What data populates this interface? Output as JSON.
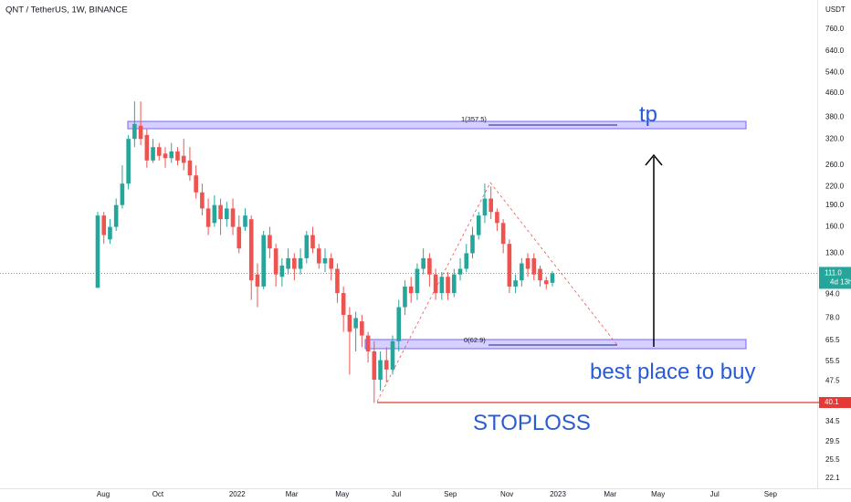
{
  "chart_data": {
    "type": "candlestick",
    "title": "QNT / TetherUS, 1W, BINANCE",
    "y_unit": "USDT",
    "log_scale": true,
    "grid": false,
    "up_color": "#26a69a",
    "down_color": "#ef5350",
    "series": {
      "open": [
        99,
        175,
        145,
        160,
        190,
        225,
        320,
        355,
        330,
        270,
        300,
        285,
        275,
        290,
        280,
        270,
        240,
        210,
        185,
        165,
        190,
        170,
        185,
        160,
        160,
        170,
        110,
        100,
        150,
        135,
        108,
        115,
        125,
        115,
        125,
        150,
        135,
        120,
        125,
        115,
        95,
        80,
        72,
        76,
        68,
        60,
        48,
        56,
        52,
        65,
        85,
        100,
        95,
        115,
        125,
        110,
        95,
        108,
        95,
        110,
        115,
        130,
        150,
        175,
        200,
        180,
        165,
        140,
        100,
        105,
        125,
        125,
        115,
        105,
        103
      ],
      "high": [
        180,
        180,
        170,
        200,
        260,
        330,
        430,
        430,
        345,
        320,
        310,
        300,
        310,
        300,
        320,
        300,
        260,
        225,
        200,
        205,
        200,
        195,
        200,
        175,
        185,
        175,
        120,
        155,
        160,
        140,
        125,
        135,
        130,
        135,
        155,
        160,
        140,
        135,
        130,
        120,
        100,
        85,
        82,
        80,
        70,
        65,
        60,
        62,
        68,
        90,
        105,
        108,
        120,
        135,
        130,
        115,
        112,
        112,
        115,
        125,
        140,
        160,
        180,
        225,
        220,
        185,
        170,
        145,
        110,
        125,
        130,
        130,
        118,
        108,
        113
      ],
      "low": [
        99,
        140,
        140,
        155,
        185,
        215,
        300,
        305,
        255,
        265,
        270,
        255,
        265,
        260,
        250,
        230,
        200,
        175,
        150,
        160,
        150,
        160,
        150,
        130,
        155,
        90,
        85,
        98,
        125,
        100,
        100,
        110,
        105,
        110,
        120,
        130,
        115,
        112,
        105,
        88,
        70,
        50,
        60,
        62,
        55,
        40,
        44,
        47,
        50,
        60,
        80,
        88,
        90,
        110,
        100,
        90,
        90,
        90,
        92,
        105,
        112,
        125,
        145,
        165,
        170,
        155,
        130,
        95,
        95,
        100,
        108,
        105,
        100,
        98,
        100
      ],
      "close": [
        175,
        150,
        160,
        190,
        225,
        320,
        360,
        320,
        270,
        300,
        280,
        275,
        290,
        270,
        265,
        240,
        210,
        185,
        160,
        190,
        170,
        185,
        160,
        135,
        175,
        105,
        100,
        150,
        135,
        110,
        118,
        125,
        115,
        125,
        150,
        135,
        120,
        125,
        115,
        95,
        80,
        70,
        78,
        68,
        60,
        48,
        56,
        52,
        65,
        85,
        100,
        95,
        115,
        125,
        110,
        95,
        108,
        95,
        110,
        115,
        130,
        150,
        175,
        200,
        180,
        165,
        140,
        100,
        105,
        120,
        115,
        110,
        105,
        102,
        111
      ]
    },
    "ylim": [
      20.4,
      956
    ],
    "yticks": [
      {
        "value": 760,
        "label": "760.0"
      },
      {
        "value": 640,
        "label": "640.0"
      },
      {
        "value": 540,
        "label": "540.0"
      },
      {
        "value": 460,
        "label": "460.0"
      },
      {
        "value": 380,
        "label": "380.0"
      },
      {
        "value": 320,
        "label": "320.0"
      },
      {
        "value": 260,
        "label": "260.0"
      },
      {
        "value": 220,
        "label": "220.0"
      },
      {
        "value": 190,
        "label": "190.0"
      },
      {
        "value": 160,
        "label": "160.0"
      },
      {
        "value": 130,
        "label": "130.0"
      },
      {
        "value": 94,
        "label": "94.0"
      },
      {
        "value": 78,
        "label": "78.0"
      },
      {
        "value": 65.5,
        "label": "65.5"
      },
      {
        "value": 55.5,
        "label": "55.5"
      },
      {
        "value": 47.5,
        "label": "47.5"
      },
      {
        "value": 34.5,
        "label": "34.5"
      },
      {
        "value": 29.5,
        "label": "29.5"
      },
      {
        "value": 25.5,
        "label": "25.5"
      },
      {
        "value": 22.1,
        "label": "22.1"
      }
    ],
    "xlim": [
      -15.9,
      117.1
    ],
    "xticks": [
      {
        "value": 0.9,
        "label": "Aug"
      },
      {
        "value": 9.8,
        "label": "Oct"
      },
      {
        "value": 22.7,
        "label": "2022"
      },
      {
        "value": 31.6,
        "label": "Mar"
      },
      {
        "value": 39.8,
        "label": "May"
      },
      {
        "value": 48.6,
        "label": "Jul"
      },
      {
        "value": 57.4,
        "label": "Sep"
      },
      {
        "value": 66.6,
        "label": "Nov"
      },
      {
        "value": 74.9,
        "label": "2023"
      },
      {
        "value": 83.4,
        "label": "Mar"
      },
      {
        "value": 91.2,
        "label": "May"
      },
      {
        "value": 100.4,
        "label": "Jul"
      },
      {
        "value": 109.5,
        "label": "Sep"
      }
    ],
    "last_price": {
      "value": 111,
      "label": "111.0"
    },
    "countdown": "4d 13h",
    "stoploss_price": 40.1,
    "annotations": {
      "tp": "tp",
      "buy": "best place to buy",
      "stoploss": "STOPLOSS",
      "fib_top": "1(357.5)",
      "fib_bottom": "0(62.9)"
    }
  }
}
